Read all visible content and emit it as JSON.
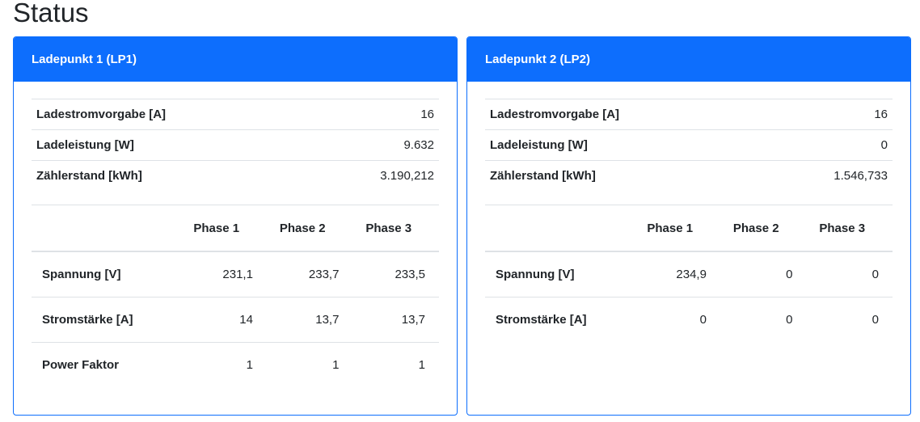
{
  "page_title": "Status",
  "cards": [
    {
      "title": "Ladepunkt 1 (LP1)",
      "kv": [
        {
          "label": "Ladestromvorgabe [A]",
          "value": "16"
        },
        {
          "label": "Ladeleistung [W]",
          "value": "9.632"
        },
        {
          "label": "Zählerstand [kWh]",
          "value": "3.190,212"
        }
      ],
      "phase_headers": [
        "Phase 1",
        "Phase 2",
        "Phase 3"
      ],
      "rows": [
        {
          "label": "Spannung [V]",
          "values": [
            "231,1",
            "233,7",
            "233,5"
          ]
        },
        {
          "label": "Stromstärke [A]",
          "values": [
            "14",
            "13,7",
            "13,7"
          ]
        },
        {
          "label": "Power Faktor",
          "values": [
            "1",
            "1",
            "1"
          ]
        }
      ]
    },
    {
      "title": "Ladepunkt 2 (LP2)",
      "kv": [
        {
          "label": "Ladestromvorgabe [A]",
          "value": "16"
        },
        {
          "label": "Ladeleistung [W]",
          "value": "0"
        },
        {
          "label": "Zählerstand [kWh]",
          "value": "1.546,733"
        }
      ],
      "phase_headers": [
        "Phase 1",
        "Phase 2",
        "Phase 3"
      ],
      "rows": [
        {
          "label": "Spannung [V]",
          "values": [
            "234,9",
            "0",
            "0"
          ]
        },
        {
          "label": "Stromstärke [A]",
          "values": [
            "0",
            "0",
            "0"
          ]
        }
      ]
    }
  ]
}
